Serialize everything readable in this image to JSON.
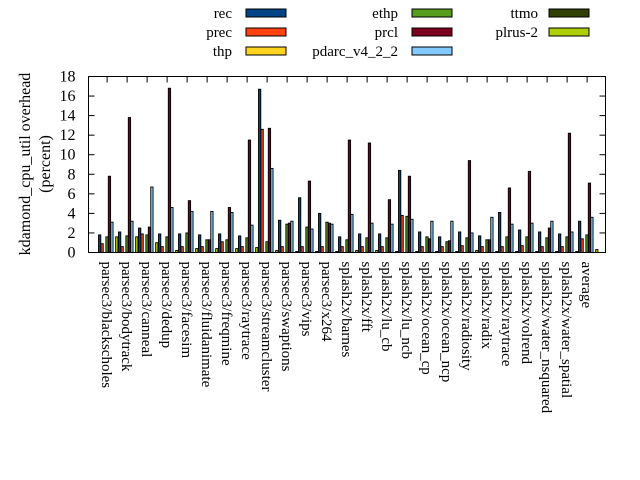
{
  "chart_data": {
    "type": "bar",
    "title": "",
    "xlabel": "",
    "ylabel": "kdamond_cpu_util overhead\n(percent)",
    "ylabel_lines": [
      "kdamond_cpu_util overhead",
      "(percent)"
    ],
    "ylim": [
      0,
      18
    ],
    "yticks": [
      0,
      2,
      4,
      6,
      8,
      10,
      12,
      14,
      16,
      18
    ],
    "grid": false,
    "legend_position": "top",
    "categories": [
      "parsec3/blackscholes",
      "parsec3/bodytrack",
      "parsec3/canneal",
      "parsec3/dedup",
      "parsec3/facesim",
      "parsec3/fluidanimate",
      "parsec3/freqmine",
      "parsec3/raytrace",
      "parsec3/streamcluster",
      "parsec3/swaptions",
      "parsec3/vips",
      "parsec3/x264",
      "splash2x/barnes",
      "splash2x/fft",
      "splash2x/lu_cb",
      "splash2x/lu_ncb",
      "splash2x/ocean_cp",
      "splash2x/ocean_ncp",
      "splash2x/radiosity",
      "splash2x/radix",
      "splash2x/raytrace",
      "splash2x/volrend",
      "splash2x/water_nsquared",
      "splash2x/water_spatial",
      "average"
    ],
    "series": [
      {
        "name": "rec",
        "color": "#004586",
        "values": [
          1.8,
          2.1,
          2.5,
          1.9,
          1.9,
          1.8,
          1.9,
          1.7,
          16.7,
          3.3,
          5.6,
          4.0,
          1.6,
          1.9,
          1.9,
          8.4,
          2.1,
          1.6,
          2.1,
          1.7,
          4.1,
          2.3,
          2.1,
          1.9,
          3.2
        ]
      },
      {
        "name": "prec",
        "color": "#ff420e",
        "values": [
          0.9,
          0.6,
          1.9,
          0.6,
          0.6,
          0.6,
          1.1,
          0.6,
          12.6,
          0.6,
          0.6,
          0.6,
          0.6,
          0.6,
          0.6,
          3.8,
          0.6,
          0.6,
          0.7,
          0.6,
          0.6,
          0.7,
          0.6,
          0.6,
          1.4
        ]
      },
      {
        "name": "thp",
        "color": "#ffd320",
        "values": [
          0.0,
          0.0,
          0.0,
          0.0,
          0.0,
          0.0,
          0.0,
          0.0,
          0.0,
          0.0,
          0.0,
          0.0,
          0.0,
          0.0,
          0.0,
          0.0,
          0.0,
          0.0,
          0.0,
          0.0,
          0.0,
          0.0,
          0.0,
          0.0,
          0.0
        ]
      },
      {
        "name": "ethp",
        "color": "#579d1c",
        "values": [
          1.6,
          1.7,
          1.8,
          1.6,
          2.0,
          1.3,
          1.3,
          1.5,
          1.1,
          2.9,
          2.6,
          3.1,
          1.3,
          1.5,
          1.5,
          3.7,
          1.6,
          1.1,
          1.5,
          1.3,
          1.6,
          1.6,
          1.5,
          1.6,
          1.8
        ]
      },
      {
        "name": "prcl",
        "color": "#7e0021",
        "values": [
          7.8,
          13.8,
          2.6,
          16.8,
          5.3,
          1.3,
          4.6,
          11.5,
          12.7,
          3.0,
          7.3,
          3.0,
          11.5,
          11.2,
          5.4,
          7.8,
          1.4,
          1.2,
          9.4,
          1.3,
          6.6,
          8.3,
          2.5,
          12.2,
          7.1
        ]
      },
      {
        "name": "pdarc_v4_2_2",
        "color": "#83caff",
        "values": [
          3.1,
          3.2,
          6.7,
          4.6,
          4.2,
          4.2,
          4.1,
          2.8,
          8.6,
          3.2,
          2.4,
          2.9,
          3.9,
          3.0,
          2.9,
          3.4,
          3.2,
          3.2,
          2.0,
          3.6,
          2.9,
          3.0,
          3.2,
          2.1,
          3.6
        ]
      },
      {
        "name": "ttmo",
        "color": "#314004",
        "values": [
          0.0,
          0.0,
          0.0,
          0.0,
          0.0,
          0.0,
          0.0,
          0.0,
          0.0,
          0.0,
          0.0,
          0.0,
          0.0,
          0.0,
          0.0,
          0.0,
          0.0,
          0.0,
          0.0,
          0.0,
          0.0,
          0.0,
          0.0,
          0.0,
          0.0
        ]
      },
      {
        "name": "plrus-2",
        "color": "#aecf00",
        "values": [
          1.6,
          1.6,
          1.0,
          0.2,
          0.4,
          0.4,
          0.4,
          0.5,
          0.2,
          0.1,
          0.1,
          0.1,
          0.2,
          0.2,
          0.1,
          0.1,
          0.1,
          0.1,
          0.2,
          0.1,
          0.1,
          0.1,
          0.1,
          0.1,
          0.3
        ]
      }
    ]
  }
}
